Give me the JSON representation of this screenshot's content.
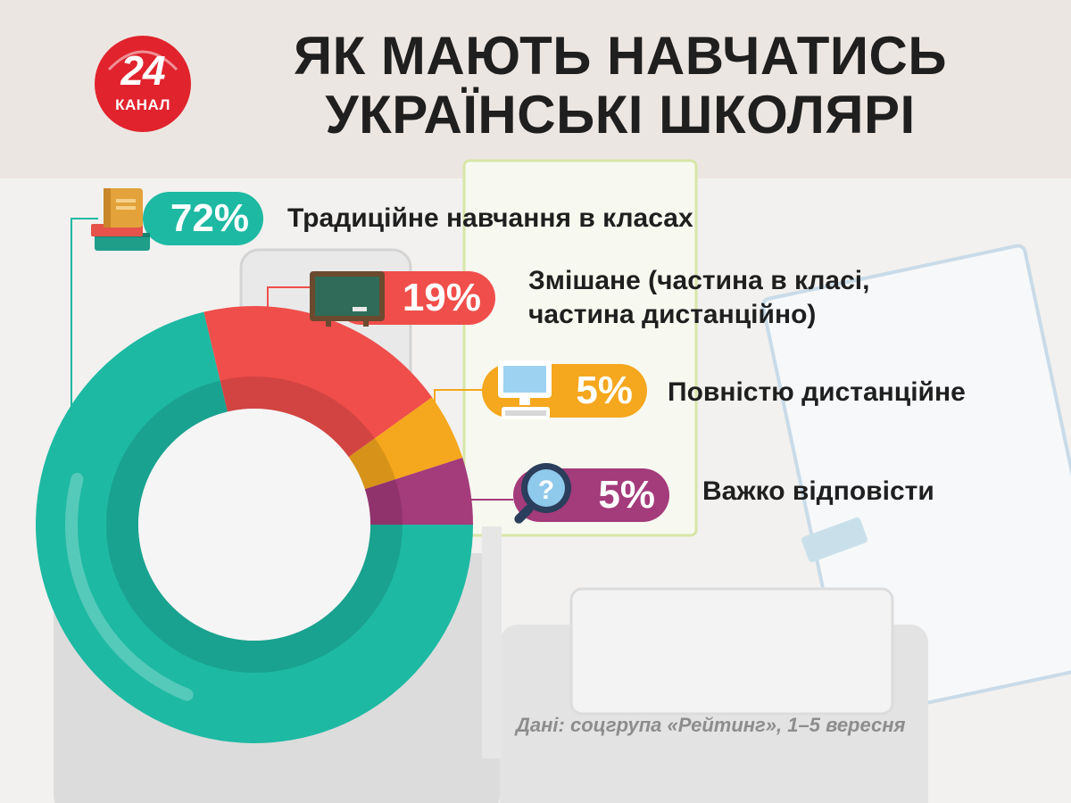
{
  "brand": {
    "logo_number": "24",
    "logo_word": "КАНАЛ",
    "logo_color": "#e1232d"
  },
  "title": {
    "line1": "ЯК МАЮТЬ НАВЧАТИСЬ",
    "line2": "УКРАЇНСЬКІ ШКОЛЯРІ"
  },
  "chart_data": {
    "type": "pie",
    "style": "donut",
    "categories": [
      "Традиційне навчання в класах",
      "Змішане (частина в класі, частина дистанційно)",
      "Повністю дистанційне",
      "Важко відповісти"
    ],
    "values": [
      72,
      19,
      5,
      5
    ],
    "value_labels": [
      "72%",
      "19%",
      "5%",
      "5%"
    ],
    "label_lines": [
      [
        "Традиційне навчання в класах"
      ],
      [
        "Змішане (частина в класі,",
        "частина дистанційно)"
      ],
      [
        "Повністю дистанційне"
      ],
      [
        "Важко відповісти"
      ]
    ],
    "colors": [
      "#1db9a3",
      "#f04e4b",
      "#f5a71d",
      "#a43b7b"
    ],
    "icons": [
      "books-icon",
      "chalkboard-icon",
      "computer-icon",
      "question-magnifier-icon"
    ]
  },
  "source": "Дані: соцгрупа «Рейтинг», 1–5 вересня"
}
